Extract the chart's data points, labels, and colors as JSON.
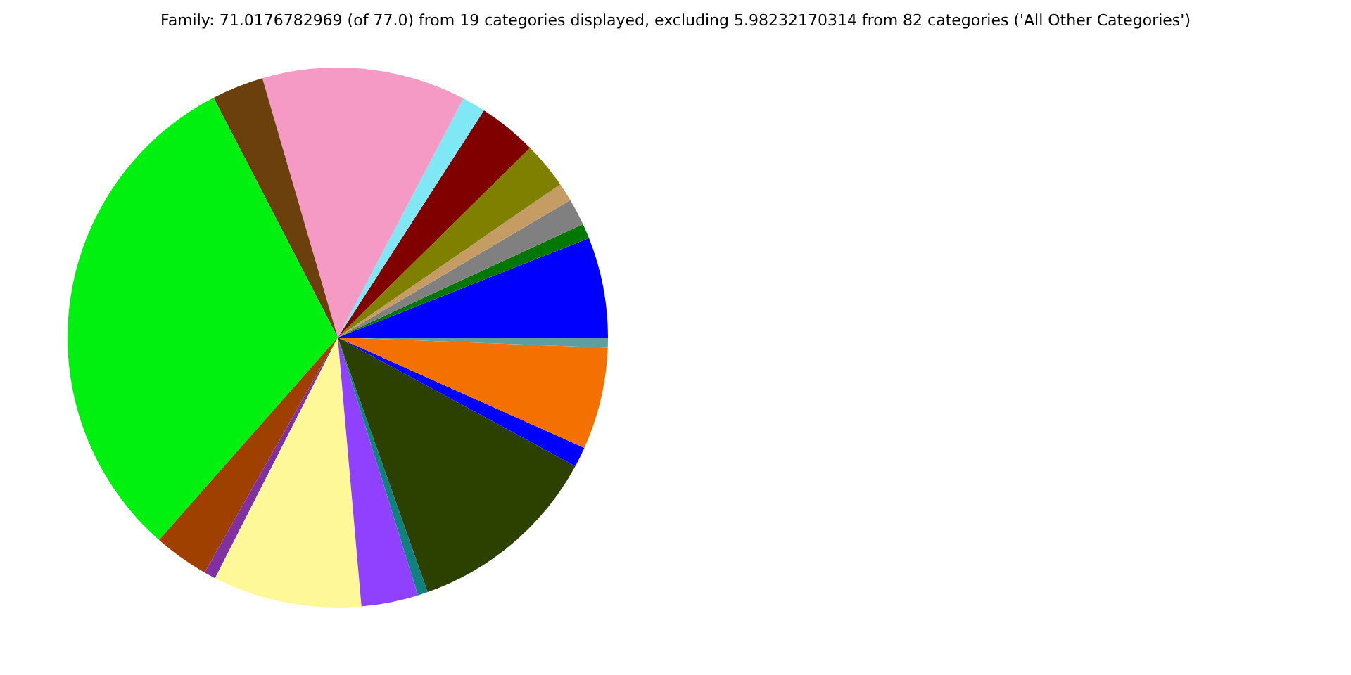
{
  "chart_data": {
    "type": "pie",
    "title": "Family: 71.0176782969 (of 77.0) from 19 categories displayed, excluding 5.98232170314 from 82 categories ('All Other Categories')",
    "categories": [
      null,
      null,
      null,
      null,
      null,
      null,
      null,
      null,
      null,
      null,
      null,
      null,
      null,
      null,
      null,
      null,
      null,
      null,
      null
    ],
    "values": [
      6.0,
      0.9,
      1.6,
      1.1,
      2.8,
      3.5,
      1.4,
      12.2,
      3.1,
      30.9,
      3.3,
      0.7,
      8.9,
      3.4,
      0.6,
      11.7,
      1.2,
      6.1,
      0.6
    ],
    "colors": [
      "#0000ff",
      "#007800",
      "#808080",
      "#c49c64",
      "#808000",
      "#800000",
      "#80e8f4",
      "#f49ac4",
      "#6b400c",
      "#00f010",
      "#a04000",
      "#8030a0",
      "#fff898",
      "#9040ff",
      "#108080",
      "#2c4000",
      "#0000ff",
      "#f47000",
      "#5f9ea0"
    ],
    "legend": false
  }
}
